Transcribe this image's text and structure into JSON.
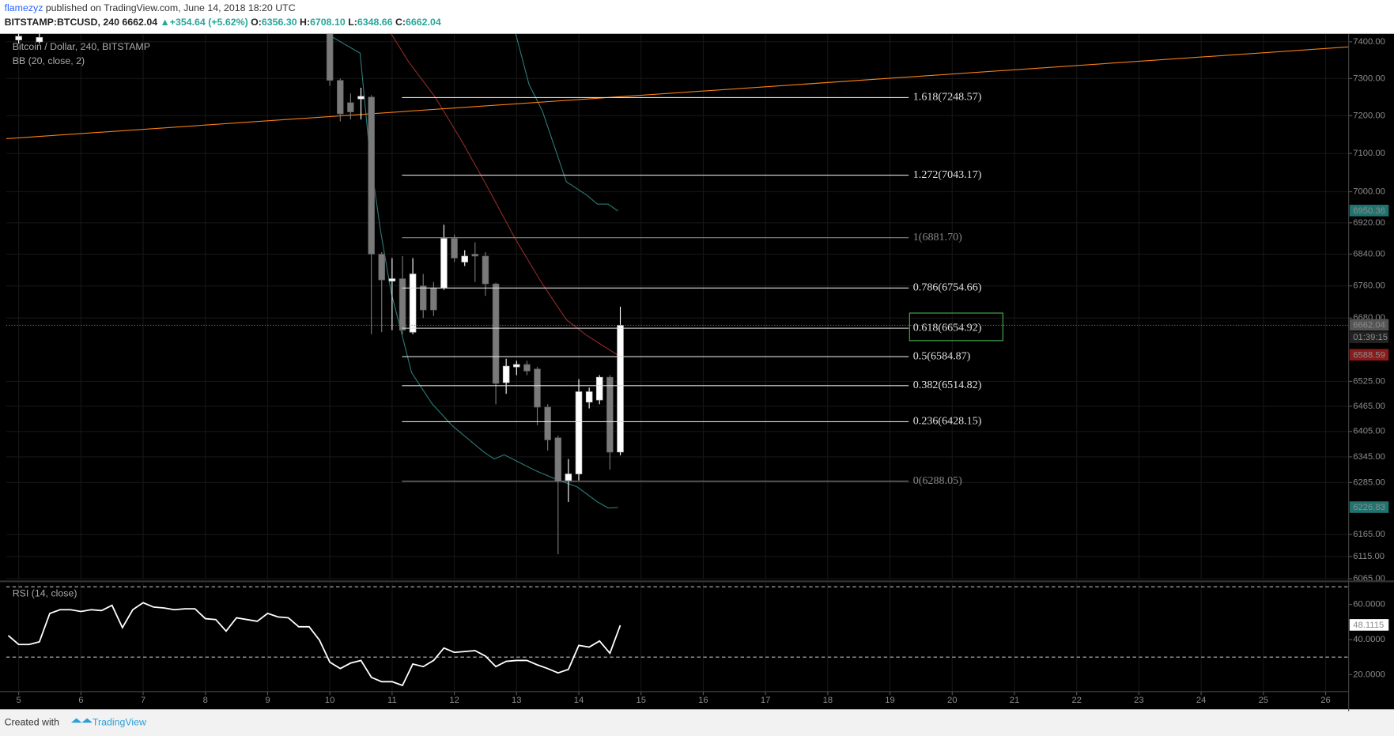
{
  "header": {
    "author": "flamezyz",
    "published": " published on TradingView.com, June 14, 2018 18:20 UTC",
    "symbol": "BITSTAMP:BTCUSD, 240",
    "last": "6662.04",
    "arrow": "▲",
    "change": "+354.64 (+5.62%)",
    "ohlc": [
      {
        "label": "O:",
        "value": "6356.30"
      },
      {
        "label": "H:",
        "value": "6708.10"
      },
      {
        "label": "L:",
        "value": "6348.66"
      },
      {
        "label": "C:",
        "value": "6662.04"
      }
    ]
  },
  "footer": {
    "text": "Created with",
    "brand": "TradingView"
  },
  "chart_data": {
    "type": "candlestick",
    "legend": [
      "Bitcoin / Dollar, 240, BITSTAMP",
      "BB (20, close, 2)"
    ],
    "log_scale": true,
    "grid": true,
    "xlim": [
      4.8,
      26.37
    ],
    "xticks": [
      5,
      6,
      7,
      8,
      9,
      10,
      11,
      12,
      13,
      14,
      15,
      16,
      17,
      18,
      19,
      20,
      21,
      22,
      23,
      24,
      25,
      26
    ],
    "ylim": [
      6063,
      7422
    ],
    "yticks": [
      {
        "value": 7400,
        "label": "7400.00"
      },
      {
        "value": 7300,
        "label": "7300.00"
      },
      {
        "value": 7200,
        "label": "7200.00"
      },
      {
        "value": 7100,
        "label": "7100.00"
      },
      {
        "value": 7000,
        "label": "7000.00"
      },
      {
        "value": 6920,
        "label": "6920.00"
      },
      {
        "value": 6840,
        "label": "6840.00"
      },
      {
        "value": 6760,
        "label": "6760.00"
      },
      {
        "value": 6680,
        "label": "6680.00"
      },
      {
        "value": 6525,
        "label": "6525.00"
      },
      {
        "value": 6465,
        "label": "6465.00"
      },
      {
        "value": 6405,
        "label": "6405.00"
      },
      {
        "value": 6345,
        "label": "6345.00"
      },
      {
        "value": 6285,
        "label": "6285.00"
      },
      {
        "value": 6165,
        "label": "6165.00"
      },
      {
        "value": 6115,
        "label": "6115.00"
      },
      {
        "value": 6065,
        "label": "6065.00"
      }
    ],
    "up_color": "#ffffff",
    "down_color": "#7a7a7a",
    "x": [
      5,
      5.333,
      10,
      10.167,
      10.333,
      10.5,
      10.667,
      10.833,
      11,
      11.167,
      11.333,
      11.5,
      11.667,
      11.833,
      12,
      12.167,
      12.333,
      12.5,
      12.667,
      12.833,
      13,
      13.167,
      13.333,
      13.5,
      13.667,
      13.833,
      14,
      14.167,
      14.333,
      14.5,
      14.667
    ],
    "open": [
      7405,
      7400,
      7440,
      7295,
      7235,
      7245,
      7250,
      6840,
      6772,
      6778,
      6645,
      6760,
      6755,
      6755,
      6880,
      6820,
      6840,
      6835,
      6765,
      6522,
      6560,
      6566,
      6555,
      6463,
      6390,
      6290,
      6305,
      6475,
      6480,
      6535,
      6356.3
    ],
    "high": [
      7430,
      7430,
      7450,
      7300,
      7260,
      7275,
      7255,
      6845,
      6830,
      6835,
      6830,
      6790,
      6770,
      6915,
      6890,
      6850,
      6870,
      6845,
      6768,
      6580,
      6575,
      6575,
      6560,
      6470,
      6395,
      6340,
      6530,
      6510,
      6540,
      6540,
      6708.1
    ],
    "low": [
      7395,
      7395,
      7280,
      7185,
      7190,
      7190,
      6640,
      6645,
      6650,
      6640,
      6640,
      6680,
      6685,
      6750,
      6820,
      6810,
      6770,
      6735,
      6470,
      6495,
      6540,
      6540,
      6420,
      6360,
      6120,
      6240,
      6290,
      6460,
      6470,
      6315,
      6348.66
    ],
    "close": [
      7415,
      7412,
      7295,
      7205,
      7210,
      7252,
      6840,
      6775,
      6778,
      6650,
      6790,
      6700,
      6700,
      6880,
      6830,
      6835,
      6835,
      6765,
      6520,
      6562,
      6566,
      6550,
      6463,
      6385,
      6288,
      6305,
      6500,
      6500,
      6535,
      6356,
      6662.04
    ],
    "bollinger": {
      "upper": {
        "color": "#2b7a78",
        "x": [
          12.986,
          13.2,
          13.414,
          13.8,
          14.129,
          14.3,
          14.471,
          14.629
        ],
        "values": [
          7422,
          7284,
          7213,
          7026,
          6991,
          6968,
          6968,
          6950.36
        ]
      },
      "basis": {
        "color": "#8e2b2b",
        "x": [
          10.986,
          11.271,
          11.7,
          12.129,
          12.486,
          12.986,
          13.414,
          13.8,
          14.129,
          14.629
        ],
        "values": [
          7422,
          7344,
          7248,
          7130,
          7026,
          6877,
          6765,
          6676,
          6637,
          6588.59
        ]
      },
      "lower": {
        "color": "#2b7a78",
        "x": [
          10,
          10.486,
          10.643,
          10.814,
          10.986,
          11.314,
          11.643,
          11.971,
          12.143,
          12.486,
          12.643,
          12.8,
          13.3,
          13.643,
          13.971,
          14.3,
          14.471,
          14.629
        ],
        "values": [
          7417,
          7369,
          7095,
          6900,
          6743,
          6546,
          6471,
          6418,
          6397,
          6355,
          6340,
          6350,
          6313,
          6292,
          6275,
          6240,
          6226,
          6226.83
        ]
      }
    },
    "trendline": {
      "color": "#f57f17",
      "x": [
        4.8,
        26.37
      ],
      "values": [
        7139,
        7386
      ]
    },
    "fib": {
      "x": [
        11.16,
        19.3
      ],
      "highlight_color": "#4caf50",
      "levels": [
        {
          "value": 7248.57,
          "label": "1.618(7248.57)",
          "color": "#e0e0e0"
        },
        {
          "value": 7043.17,
          "label": "1.272(7043.17)",
          "color": "#e0e0e0"
        },
        {
          "value": 6881.7,
          "label": "1(6881.70)",
          "color": "#888888"
        },
        {
          "value": 6754.66,
          "label": "0.786(6754.66)",
          "color": "#e0e0e0"
        },
        {
          "value": 6654.92,
          "label": "0.618(6654.92)",
          "color": "#e0e0e0",
          "highlight": true
        },
        {
          "value": 6584.87,
          "label": "0.5(6584.87)",
          "color": "#e0e0e0"
        },
        {
          "value": 6514.82,
          "label": "0.382(6514.82)",
          "color": "#e0e0e0"
        },
        {
          "value": 6428.15,
          "label": "0.236(6428.15)",
          "color": "#e0e0e0"
        },
        {
          "value": 6288.05,
          "label": "0(6288.05)",
          "color": "#888888"
        }
      ]
    },
    "price_badges": [
      {
        "value": 6950.36,
        "label": "6950.36",
        "color": "#1f7470"
      },
      {
        "value": 6662.04,
        "label": "6662.04",
        "color": "#555555",
        "countdown": "01:39:15"
      },
      {
        "value": 6588.59,
        "label": "6588.59",
        "color": "#8b1a1a"
      },
      {
        "value": 6226.83,
        "label": "6226.83",
        "color": "#1f7470"
      }
    ],
    "rsi": {
      "title": "RSI (14, close)",
      "color": "#ffffff",
      "ylim": [
        10.4,
        72.15
      ],
      "levels": [
        70,
        30
      ],
      "yticks": [
        {
          "value": 60,
          "label": "60.0000"
        },
        {
          "value": 40,
          "label": "40.0000"
        },
        {
          "value": 20,
          "label": "20.0000"
        }
      ],
      "badge": {
        "value": 48.1115,
        "label": "48.1115"
      },
      "x": [
        4.833,
        5,
        5.167,
        5.333,
        5.5,
        5.667,
        5.833,
        6,
        6.167,
        6.333,
        6.5,
        6.667,
        6.833,
        7,
        7.167,
        7.333,
        7.5,
        7.667,
        7.833,
        8,
        8.167,
        8.333,
        8.5,
        8.667,
        8.833,
        9,
        9.167,
        9.333,
        9.5,
        9.667,
        9.833,
        10,
        10.167,
        10.333,
        10.5,
        10.667,
        10.833,
        11,
        11.167,
        11.333,
        11.5,
        11.667,
        11.833,
        12,
        12.167,
        12.333,
        12.5,
        12.667,
        12.833,
        13,
        13.167,
        13.333,
        13.5,
        13.667,
        13.833,
        14,
        14.167,
        14.333,
        14.5,
        14.667
      ],
      "values": [
        42.3,
        37.2,
        37.2,
        38.7,
        54.9,
        57,
        57,
        56,
        57,
        56.5,
        59.5,
        46.8,
        57,
        61,
        58.5,
        58,
        57,
        57.5,
        57.5,
        51.9,
        51.4,
        44.8,
        52.4,
        51.4,
        50.4,
        54.9,
        52.9,
        52.4,
        47.3,
        47.3,
        39.7,
        27.1,
        23.5,
        26.6,
        28.1,
        18.5,
        16,
        16,
        13.9,
        26.1,
        24.6,
        28.1,
        35.2,
        32.7,
        33.2,
        33.7,
        30.6,
        24.6,
        27.6,
        28.1,
        28.1,
        25.6,
        23.5,
        21,
        23,
        36.7,
        35.7,
        39.2,
        32.2,
        48.1115
      ]
    }
  }
}
